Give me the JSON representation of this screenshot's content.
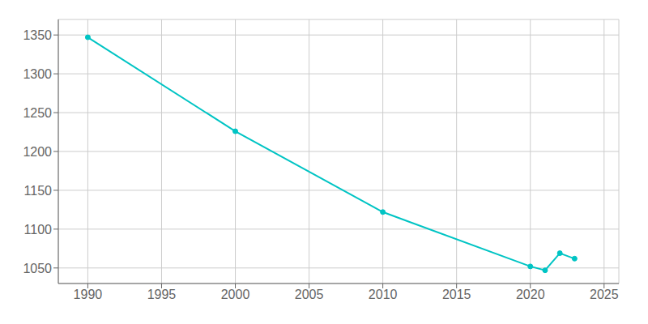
{
  "chart_data": {
    "type": "line",
    "x": [
      1990,
      2000,
      2010,
      2020,
      2021,
      2022,
      2023
    ],
    "values": [
      1347,
      1226,
      1122,
      1052,
      1047,
      1069,
      1062
    ],
    "color": "#00C4C4",
    "marker": "o",
    "xlim": [
      1988,
      2026
    ],
    "ylim": [
      1030,
      1370
    ],
    "xticks": [
      1990,
      1995,
      2000,
      2005,
      2010,
      2015,
      2020,
      2025
    ],
    "yticks": [
      1050,
      1100,
      1150,
      1200,
      1250,
      1300,
      1350
    ],
    "grid": true
  }
}
